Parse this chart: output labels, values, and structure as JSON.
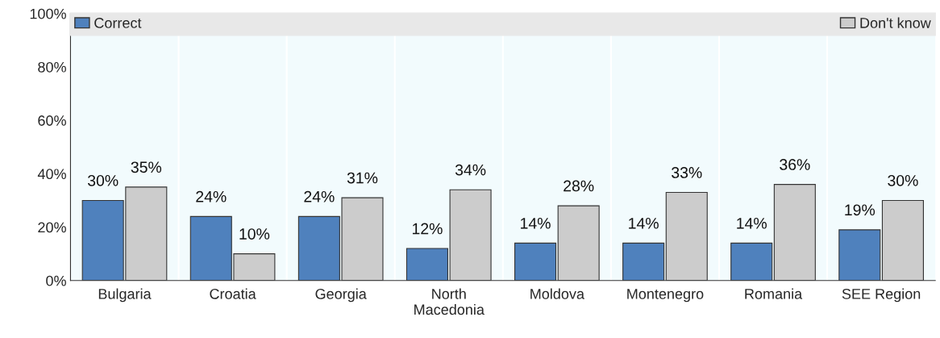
{
  "chart_data": {
    "type": "bar",
    "categories": [
      "Bulgaria",
      "Croatia",
      "Georgia",
      "North\nMacedonia",
      "Moldova",
      "Montenegro",
      "Romania",
      "SEE Region"
    ],
    "series": [
      {
        "name": "Correct",
        "color": "#4f81bd",
        "values": [
          30,
          24,
          24,
          12,
          14,
          14,
          14,
          19
        ],
        "value_labels": [
          "30%",
          "24%",
          "24%",
          "12%",
          "14%",
          "14%",
          "14%",
          "19%"
        ]
      },
      {
        "name": "Don't know",
        "color": "#cccccc",
        "values": [
          35,
          10,
          31,
          34,
          28,
          33,
          36,
          30
        ],
        "value_labels": [
          "35%",
          "10%",
          "31%",
          "34%",
          "28%",
          "33%",
          "36%",
          "30%"
        ]
      }
    ],
    "ylim": [
      0,
      100
    ],
    "yticks": [
      {
        "value": 0,
        "label": "0%"
      },
      {
        "value": 20,
        "label": "20%"
      },
      {
        "value": 40,
        "label": "40%"
      },
      {
        "value": 60,
        "label": "60%"
      },
      {
        "value": 80,
        "label": "80%"
      },
      {
        "value": 100,
        "label": "100%"
      }
    ],
    "legend": "top",
    "grid": false
  }
}
